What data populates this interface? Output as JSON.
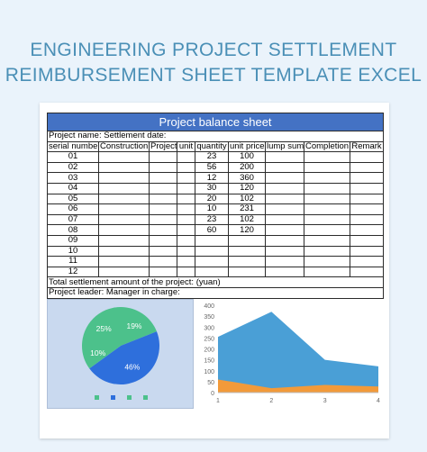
{
  "hero": {
    "line1": "ENGINEERING PROJECT SETTLEMENT",
    "line2": "REIMBURSEMENT SHEET TEMPLATE EXCEL"
  },
  "sheet": {
    "title": "Project balance sheet",
    "project_name_row": "Project name: Settlement date:",
    "headers": [
      "serial number",
      "Construction",
      "Project",
      "unit",
      "quantity",
      "unit price",
      "lump sum",
      "Completion",
      "Remark"
    ],
    "rows": [
      {
        "serial": "01",
        "quantity": "23",
        "unit_price": "100"
      },
      {
        "serial": "02",
        "quantity": "56",
        "unit_price": "200"
      },
      {
        "serial": "03",
        "quantity": "12",
        "unit_price": "360"
      },
      {
        "serial": "04",
        "quantity": "30",
        "unit_price": "120"
      },
      {
        "serial": "05",
        "quantity": "20",
        "unit_price": "102"
      },
      {
        "serial": "06",
        "quantity": "10",
        "unit_price": "231"
      },
      {
        "serial": "07",
        "quantity": "23",
        "unit_price": "102"
      },
      {
        "serial": "08",
        "quantity": "60",
        "unit_price": "120"
      },
      {
        "serial": "09",
        "quantity": "",
        "unit_price": ""
      },
      {
        "serial": "10",
        "quantity": "",
        "unit_price": ""
      },
      {
        "serial": "11",
        "quantity": "",
        "unit_price": ""
      },
      {
        "serial": "12",
        "quantity": "",
        "unit_price": ""
      }
    ],
    "total_row": "Total settlement amount of the project: (yuan)",
    "leader_row": "Project leader: Manager in charge:"
  },
  "chart_data": [
    {
      "type": "pie",
      "slices": [
        {
          "label": "19%",
          "value": 19,
          "color": "#4cc18b"
        },
        {
          "label": "46%",
          "value": 46,
          "color": "#2e6fdc"
        },
        {
          "label": "10%",
          "value": 10,
          "color": "#4cc18b"
        },
        {
          "label": "25%",
          "value": 25,
          "color": "#4cc18b"
        }
      ]
    },
    {
      "type": "area",
      "x": [
        1,
        2,
        3,
        4
      ],
      "series": [
        {
          "values": [
            255,
            370,
            150,
            120
          ],
          "color": "#4a9fd6"
        },
        {
          "values": [
            60,
            20,
            35,
            28
          ],
          "color": "#f29a3a"
        }
      ],
      "ylim": [
        0,
        400
      ],
      "yticks": [
        0,
        50,
        100,
        150,
        200,
        250,
        300,
        350,
        400
      ],
      "grid": false
    }
  ]
}
